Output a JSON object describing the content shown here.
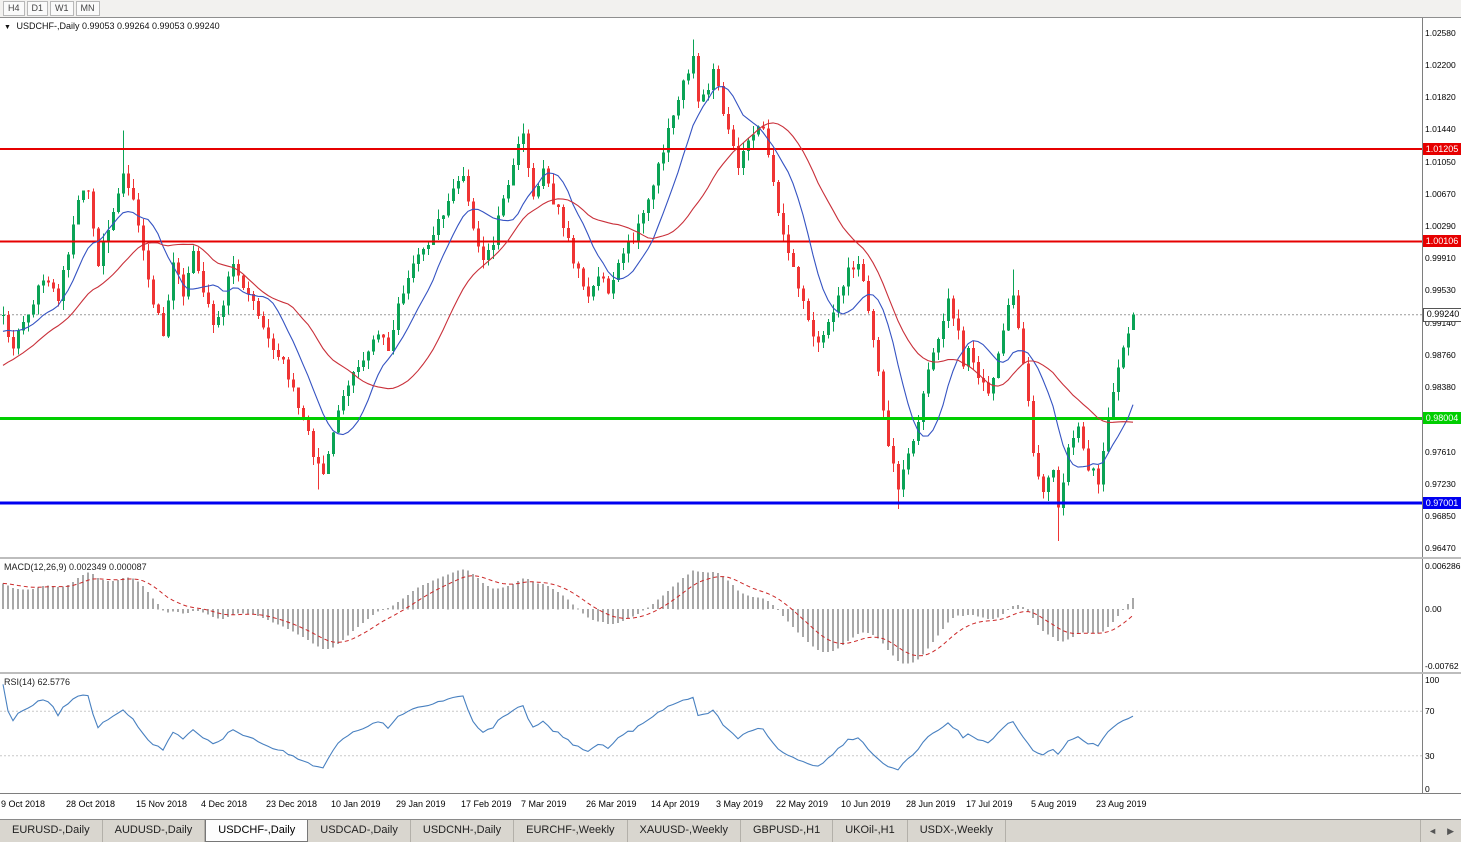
{
  "ui": {
    "toolbar": {
      "timeframes": [
        "H4",
        "D1",
        "W1",
        "MN"
      ]
    },
    "main_label": {
      "menu_icon": "▼",
      "symbol": "USDCHF-,Daily",
      "ohlc": "0.99053 0.99264 0.99053 0.99240"
    },
    "macd_label": "MACD(12,26,9) 0.002349 0.000087",
    "rsi_label": "RSI(14) 62.5776",
    "tabs": {
      "items": [
        "EURUSD-,Daily",
        "AUDUSD-,Daily",
        "USDCHF-,Daily",
        "USDCAD-,Daily",
        "USDCNH-,Daily",
        "EURCHF-,Weekly",
        "XAUUSD-,Weekly",
        "GBPUSD-,H1",
        "UKOil-,H1",
        "USDX-,Weekly"
      ],
      "active_index": 2,
      "scroll_left": "◄",
      "scroll_right": "▶"
    }
  },
  "chart_data": [
    {
      "type": "candlestick",
      "title": "USDCHF Daily",
      "bars": 227,
      "bar_anchors": [
        [
          -40,
          0.97
        ],
        [
          -28,
          0.9775
        ],
        [
          -16,
          0.984
        ],
        [
          -8,
          0.989
        ],
        [
          0,
          0.992
        ],
        [
          2,
          0.9885
        ],
        [
          5,
          0.993
        ],
        [
          8,
          0.9965
        ],
        [
          11,
          0.9945
        ],
        [
          13,
          1.0
        ],
        [
          15,
          1.0055
        ],
        [
          17,
          1.0075
        ],
        [
          19,
          0.9985
        ],
        [
          21,
          1.002
        ],
        [
          24,
          1.0095
        ],
        [
          26,
          1.006
        ],
        [
          28,
          0.9995
        ],
        [
          30,
          0.994
        ],
        [
          32,
          0.99
        ],
        [
          34,
          0.9985
        ],
        [
          36,
          0.995
        ],
        [
          38,
          0.9995
        ],
        [
          40,
          0.9955
        ],
        [
          42,
          0.9905
        ],
        [
          44,
          0.994
        ],
        [
          46,
          0.9985
        ],
        [
          48,
          0.995
        ],
        [
          50,
          0.9935
        ],
        [
          53,
          0.9895
        ],
        [
          56,
          0.987
        ],
        [
          58,
          0.9835
        ],
        [
          60,
          0.98
        ],
        [
          62,
          0.976
        ],
        [
          64,
          0.973
        ],
        [
          66,
          0.979
        ],
        [
          69,
          0.984
        ],
        [
          72,
          0.987
        ],
        [
          75,
          0.9905
        ],
        [
          77,
          0.9885
        ],
        [
          79,
          0.9935
        ],
        [
          82,
          0.998
        ],
        [
          85,
          1.001
        ],
        [
          88,
          1.0045
        ],
        [
          90,
          1.007
        ],
        [
          92,
          1.0085
        ],
        [
          94,
          1.003
        ],
        [
          96,
          0.9985
        ],
        [
          98,
          1.001
        ],
        [
          100,
          1.006
        ],
        [
          102,
          1.0105
        ],
        [
          104,
          1.0135
        ],
        [
          106,
          1.007
        ],
        [
          108,
          1.0095
        ],
        [
          110,
          1.006
        ],
        [
          112,
          1.003
        ],
        [
          114,
          0.999
        ],
        [
          117,
          0.9945
        ],
        [
          119,
          0.9975
        ],
        [
          121,
          0.995
        ],
        [
          123,
          0.999
        ],
        [
          126,
          1.0015
        ],
        [
          128,
          1.0045
        ],
        [
          130,
          1.008
        ],
        [
          132,
          1.012
        ],
        [
          134,
          1.016
        ],
        [
          136,
          1.0195
        ],
        [
          138,
          1.0225
        ],
        [
          139,
          1.018
        ],
        [
          141,
          1.019
        ],
        [
          142,
          1.0215
        ],
        [
          145,
          1.014
        ],
        [
          147,
          1.01
        ],
        [
          149,
          1.0135
        ],
        [
          152,
          1.0145
        ],
        [
          154,
          1.008
        ],
        [
          155,
          1.004
        ],
        [
          157,
          1.0
        ],
        [
          159,
          0.996
        ],
        [
          161,
          0.992
        ],
        [
          163,
          0.9885
        ],
        [
          165,
          0.9915
        ],
        [
          167,
          0.9945
        ],
        [
          169,
          0.9975
        ],
        [
          171,
          0.999
        ],
        [
          173,
          0.993
        ],
        [
          175,
          0.985
        ],
        [
          177,
          0.977
        ],
        [
          179,
          0.972
        ],
        [
          181,
          0.9755
        ],
        [
          183,
          0.98
        ],
        [
          185,
          0.9855
        ],
        [
          187,
          0.99
        ],
        [
          189,
          0.994
        ],
        [
          191,
          0.99
        ],
        [
          192,
          0.9865
        ],
        [
          193,
          0.989
        ],
        [
          195,
          0.9855
        ],
        [
          197,
          0.9825
        ],
        [
          199,
          0.9875
        ],
        [
          201,
          0.9935
        ],
        [
          202,
          0.995
        ],
        [
          204,
          0.987
        ],
        [
          206,
          0.976
        ],
        [
          208,
          0.9715
        ],
        [
          210,
          0.9745
        ],
        [
          211,
          0.97
        ],
        [
          213,
          0.976
        ],
        [
          215,
          0.979
        ],
        [
          217,
          0.9745
        ],
        [
          219,
          0.9725
        ],
        [
          221,
          0.98
        ],
        [
          223,
          0.9865
        ],
        [
          225,
          0.9905
        ],
        [
          226,
          0.9924
        ]
      ],
      "wick_spikes": [
        {
          "i": 24,
          "high": 1.0142
        },
        {
          "i": 63,
          "low": 0.9716
        },
        {
          "i": 92,
          "high": 1.0098
        },
        {
          "i": 104,
          "high": 1.0142
        },
        {
          "i": 138,
          "high": 1.025
        },
        {
          "i": 142,
          "high": 1.0222
        },
        {
          "i": 179,
          "low": 0.9693
        },
        {
          "i": 202,
          "high": 0.9977
        },
        {
          "i": 211,
          "low": 0.9655
        }
      ],
      "last_bar": {
        "open": 0.99053,
        "high": 0.99264,
        "low": 0.99053,
        "close": 0.9924
      },
      "y_axis": {
        "top": 1.0277,
        "bottom": 0.96358,
        "ticks": [
          "1.02580",
          "1.02200",
          "1.01820",
          "1.01440",
          "1.01050",
          "1.00670",
          "1.00290",
          "0.99910",
          "0.99530",
          "0.99140",
          "0.98760",
          "0.98380",
          "0.97610",
          "0.97230",
          "0.96850",
          "0.96470"
        ]
      },
      "x_ticks": [
        {
          "label": "9 Oct 2018",
          "i": 0
        },
        {
          "label": "28 Oct 2018",
          "i": 13
        },
        {
          "label": "15 Nov 2018",
          "i": 27
        },
        {
          "label": "4 Dec 2018",
          "i": 40
        },
        {
          "label": "23 Dec 2018",
          "i": 53
        },
        {
          "label": "10 Jan 2019",
          "i": 66
        },
        {
          "label": "29 Jan 2019",
          "i": 79
        },
        {
          "label": "17 Feb 2019",
          "i": 92
        },
        {
          "label": "7 Mar 2019",
          "i": 104
        },
        {
          "label": "26 Mar 2019",
          "i": 117
        },
        {
          "label": "14 Apr 2019",
          "i": 130
        },
        {
          "label": "3 May 2019",
          "i": 143
        },
        {
          "label": "22 May 2019",
          "i": 155
        },
        {
          "label": "10 Jun 2019",
          "i": 168
        },
        {
          "label": "28 Jun 2019",
          "i": 181
        },
        {
          "label": "17 Jul 2019",
          "i": 193
        },
        {
          "label": "5 Aug 2019",
          "i": 206
        },
        {
          "label": "23 Aug 2019",
          "i": 219
        }
      ],
      "key_levels": [
        {
          "label": "1.01205",
          "price": 1.01205,
          "color": "#e60000",
          "width": 2
        },
        {
          "label": "1.00106",
          "price": 1.00106,
          "color": "#e60000",
          "width": 2
        },
        {
          "label": "0.98004",
          "price": 0.98004,
          "color": "#00ce00",
          "width": 3
        },
        {
          "label": "0.97001",
          "price": 0.97001,
          "color": "#0000f0",
          "width": 3
        }
      ],
      "current_price": {
        "label": "0.99240",
        "price": 0.9924
      },
      "moving_averages": [
        {
          "period": 10,
          "color": "#3553c2"
        },
        {
          "period": 25,
          "color": "#c9303a"
        }
      ],
      "colors": {
        "up": "#0aa356",
        "down": "#ef3434",
        "bid_line": "#999999"
      }
    },
    {
      "type": "macd",
      "label": "MACD(12,26,9)",
      "values": [
        "0.002349",
        "0.000087"
      ],
      "fast": 12,
      "slow": 26,
      "signal": 9,
      "range": [
        -0.0085,
        0.0068
      ],
      "y_ticks": [
        "0.006286",
        "0.00",
        "-0.00762"
      ],
      "colors": {
        "histogram": "#a8a8a8",
        "signal": "#cc2929"
      }
    },
    {
      "type": "rsi",
      "label": "RSI(14)",
      "value": "62.5776",
      "period": 14,
      "range": [
        0,
        100
      ],
      "levels": [
        70,
        30
      ],
      "y_ticks": [
        "100",
        "70",
        "30",
        "0"
      ],
      "colors": {
        "line": "#4880c0",
        "level": "#c8c8c8"
      }
    }
  ]
}
